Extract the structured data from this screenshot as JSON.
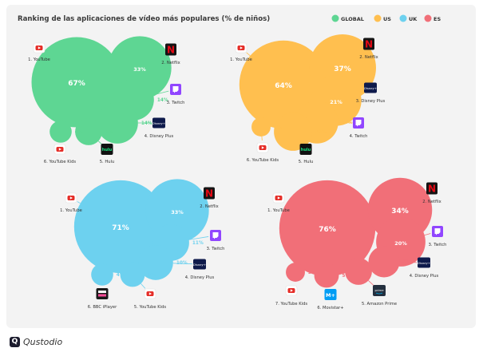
{
  "footer": {
    "brand": "Qustodio"
  },
  "chart_data": {
    "type": "bubble",
    "title": "Ranking de las aplicaciones de vídeo más populares (% de niños)",
    "legend_position": "top-right",
    "legend": [
      {
        "name": "GLOBAL",
        "color": "#5ed693"
      },
      {
        "name": "US",
        "color": "#ffbf4f"
      },
      {
        "name": "UK",
        "color": "#6dd1ef"
      },
      {
        "name": "ES",
        "color": "#f16f78"
      }
    ],
    "panels": [
      {
        "name": "GLOBAL",
        "color": "#5ed693",
        "apps": [
          {
            "rank_label": "1. YouTube",
            "value": 67,
            "icon": "youtube-icon"
          },
          {
            "rank_label": "2. Netflix",
            "value": 33,
            "icon": "netflix-icon"
          },
          {
            "rank_label": "3. Twitch",
            "value": 14,
            "icon": "twitch-icon"
          },
          {
            "rank_label": "4. Disney Plus",
            "value": 14,
            "icon": "disney-plus-icon"
          },
          {
            "rank_label": "5. Hulu",
            "value": 6,
            "icon": "hulu-icon"
          },
          {
            "rank_label": "6. YouTube Kids",
            "value": 4,
            "icon": "youtube-kids-icon"
          }
        ]
      },
      {
        "name": "US",
        "color": "#ffbf4f",
        "apps": [
          {
            "rank_label": "1. YouTube",
            "value": 64,
            "icon": "youtube-icon"
          },
          {
            "rank_label": "2. Netflix",
            "value": 37,
            "icon": "netflix-icon"
          },
          {
            "rank_label": "3. Disney Plus",
            "value": 21,
            "icon": "disney-plus-icon"
          },
          {
            "rank_label": "4. Twitch",
            "value": 15,
            "icon": "twitch-icon"
          },
          {
            "rank_label": "5. Hulu",
            "value": 12,
            "icon": "hulu-icon"
          },
          {
            "rank_label": "6. YouTube Kids",
            "value": 3,
            "icon": "youtube-kids-icon"
          }
        ]
      },
      {
        "name": "UK",
        "color": "#6dd1ef",
        "apps": [
          {
            "rank_label": "1. YouTube",
            "value": 71,
            "icon": "youtube-icon"
          },
          {
            "rank_label": "2. Netflix",
            "value": 33,
            "icon": "netflix-icon"
          },
          {
            "rank_label": "3. Twitch",
            "value": 11,
            "icon": "twitch-icon"
          },
          {
            "rank_label": "4. Disney Plus",
            "value": 10,
            "icon": "disney-plus-icon"
          },
          {
            "rank_label": "5. YouTube Kids",
            "value": 5,
            "icon": "youtube-kids-icon"
          },
          {
            "rank_label": "6. BBC iPlayer",
            "value": 4,
            "icon": "bbc-iplayer-icon"
          }
        ]
      },
      {
        "name": "ES",
        "color": "#f16f78",
        "apps": [
          {
            "rank_label": "1. YouTube",
            "value": 76,
            "icon": "youtube-icon"
          },
          {
            "rank_label": "2. Netflix",
            "value": 34,
            "icon": "netflix-icon"
          },
          {
            "rank_label": "3. Twitch",
            "value": 20,
            "icon": "twitch-icon"
          },
          {
            "rank_label": "4. Disney Plus",
            "value": 8,
            "icon": "disney-plus-icon"
          },
          {
            "rank_label": "5. Amazon Prime",
            "value": 6,
            "icon": "amazon-prime-icon"
          },
          {
            "rank_label": "6. Movistar+",
            "value": 5,
            "icon": "movistar-plus-icon"
          },
          {
            "rank_label": "7. YouTube Kids",
            "value": 3,
            "icon": "youtube-kids-icon"
          }
        ]
      }
    ]
  }
}
